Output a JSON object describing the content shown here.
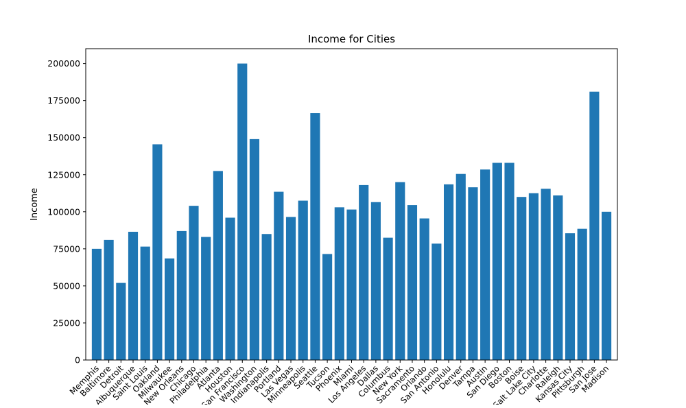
{
  "chart_data": {
    "type": "bar",
    "title": "Income for Cities",
    "xlabel": "",
    "ylabel": "Income",
    "ylim": [
      0,
      210000
    ],
    "yticks": [
      0,
      25000,
      50000,
      75000,
      100000,
      125000,
      150000,
      175000,
      200000
    ],
    "grid": false,
    "legend": "none",
    "bar_color": "#1f77b4",
    "categories": [
      "Memphis",
      "Baltimore",
      "Detroit",
      "Albuquerque",
      "Saint Louis",
      "Oakland",
      "Milwaukee",
      "New Orleans",
      "Chicago",
      "Philadelphia",
      "Atlanta",
      "Houston",
      "San Francisco",
      "Washington",
      "Indianapolis",
      "Portland",
      "Las Vegas",
      "Minneapolis",
      "Seattle",
      "Tucson",
      "Phoenix",
      "Miami",
      "Los Angeles",
      "Dallas",
      "Columbus",
      "New York",
      "Sacramento",
      "Orlando",
      "San Antonio",
      "Honolulu",
      "Denver",
      "Tampa",
      "Austin",
      "San Diego",
      "Boston",
      "Boise",
      "Salt Lake City",
      "Charlotte",
      "Raleigh",
      "Kansas City",
      "Pittsburgh",
      "San Jose",
      "Madison"
    ],
    "values": [
      75000,
      81000,
      52000,
      86500,
      76500,
      145500,
      68500,
      87000,
      104000,
      83000,
      127500,
      96000,
      200000,
      149000,
      85000,
      113500,
      96500,
      107500,
      166500,
      71500,
      103000,
      101500,
      118000,
      106500,
      82500,
      120000,
      104500,
      95500,
      78500,
      118500,
      125500,
      116500,
      128500,
      133000,
      133000,
      110000,
      112500,
      115500,
      111000,
      85500,
      88500,
      181000,
      100000
    ]
  }
}
